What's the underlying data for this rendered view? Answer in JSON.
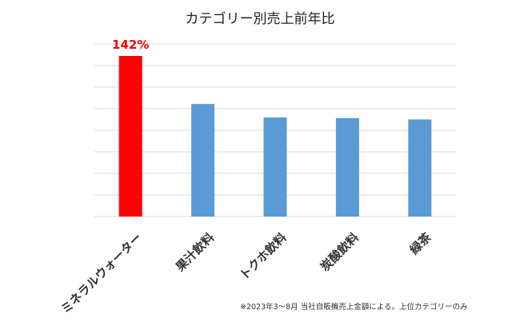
{
  "chart_data": {
    "type": "bar",
    "title": "カテゴリー別売上前年比",
    "categories": [
      "ミネラルウォーター",
      "果汁飲料",
      "トクホ飲料",
      "炭酸飲料",
      "緑茶"
    ],
    "values": [
      142,
      110,
      101,
      100.6,
      99.7
    ],
    "ylim": [
      35,
      150
    ],
    "grid": true,
    "data_labels": [
      "142%",
      "",
      "",
      "",
      ""
    ],
    "bar_colors": [
      "#ff0000",
      "#5b9bd5",
      "#5b9bd5",
      "#5b9bd5",
      "#5b9bd5"
    ],
    "highlight_label_color": "#ff0000",
    "xlabel": "",
    "ylabel": ""
  },
  "footnote": "※2023年3～8月 当社自販機売上金額による。上位カテゴリーのみ"
}
